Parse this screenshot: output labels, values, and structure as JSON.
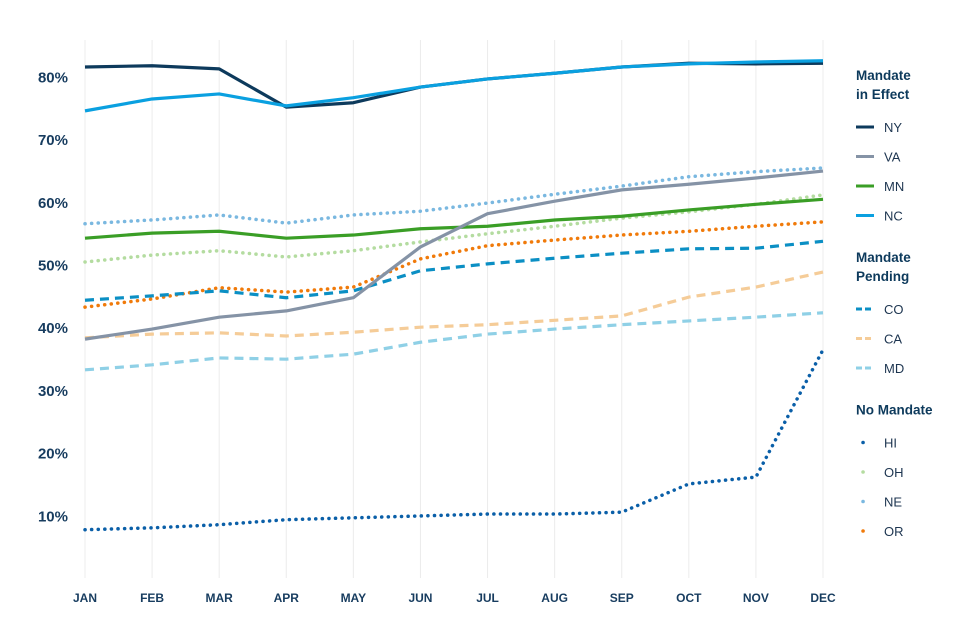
{
  "chart_data": {
    "type": "line",
    "title": "",
    "xlabel": "",
    "ylabel": "",
    "categories": [
      "JAN",
      "FEB",
      "MAR",
      "APR",
      "MAY",
      "JUN",
      "JUL",
      "AUG",
      "SEP",
      "OCT",
      "NOV",
      "DEC"
    ],
    "ylim": [
      0,
      90
    ],
    "yticks": [
      10,
      20,
      30,
      40,
      50,
      60,
      70,
      80
    ],
    "ytick_labels": [
      "10%",
      "20%",
      "30%",
      "40%",
      "50%",
      "60%",
      "70%",
      "80%"
    ],
    "grid": "vertical",
    "legend_position": "right",
    "legend_groups": [
      {
        "title_lines": [
          "Mandate",
          "in Effect"
        ],
        "series": [
          "NY",
          "VA",
          "MN",
          "NC"
        ]
      },
      {
        "title_lines": [
          "Mandate",
          "Pending"
        ],
        "series": [
          "CO",
          "CA",
          "MD"
        ]
      },
      {
        "title_lines": [
          "No Mandate"
        ],
        "series": [
          "HI",
          "OH",
          "NE",
          "OR"
        ]
      }
    ],
    "series": [
      {
        "name": "NY",
        "style": "solid",
        "color": "#0d3a5c",
        "values": [
          81.5,
          81.7,
          81.2,
          75.1,
          75.8,
          78.3,
          79.6,
          80.5,
          81.5,
          82.1,
          82.0,
          82.1
        ]
      },
      {
        "name": "VA",
        "style": "solid",
        "color": "#8593a6",
        "values": [
          38.1,
          39.7,
          41.6,
          42.6,
          44.7,
          52.8,
          58.1,
          60.1,
          61.9,
          62.8,
          63.8,
          64.9
        ]
      },
      {
        "name": "MN",
        "style": "solid",
        "color": "#3a9e26",
        "values": [
          54.2,
          55.0,
          55.3,
          54.2,
          54.7,
          55.7,
          56.1,
          57.1,
          57.7,
          58.7,
          59.6,
          60.4
        ]
      },
      {
        "name": "NC",
        "style": "solid",
        "color": "#0aa0e0",
        "values": [
          74.5,
          76.4,
          77.2,
          75.3,
          76.6,
          78.3,
          79.6,
          80.5,
          81.5,
          82.0,
          82.3,
          82.5
        ]
      },
      {
        "name": "CO",
        "style": "dashed",
        "color": "#0b8fc4",
        "values": [
          44.3,
          45.0,
          45.8,
          44.7,
          45.8,
          49.0,
          50.1,
          51.0,
          51.8,
          52.5,
          52.6,
          53.7
        ]
      },
      {
        "name": "CA",
        "style": "dashed",
        "color": "#f5cc98",
        "values": [
          38.3,
          38.9,
          39.1,
          38.6,
          39.2,
          40.0,
          40.4,
          41.1,
          41.8,
          44.8,
          46.4,
          48.8
        ]
      },
      {
        "name": "MD",
        "style": "dashed",
        "color": "#8fd0e6",
        "values": [
          33.2,
          34.0,
          35.1,
          34.9,
          35.7,
          37.6,
          38.9,
          39.7,
          40.4,
          41.0,
          41.6,
          42.3
        ]
      },
      {
        "name": "HI",
        "style": "dotted",
        "color": "#0a5fa8",
        "values": [
          7.7,
          8.0,
          8.5,
          9.3,
          9.6,
          9.9,
          10.2,
          10.2,
          10.5,
          15.0,
          16.1,
          36.4
        ]
      },
      {
        "name": "OH",
        "style": "dotted",
        "color": "#b4dca0",
        "values": [
          50.4,
          51.5,
          52.2,
          51.2,
          52.2,
          53.6,
          54.9,
          56.1,
          57.4,
          58.4,
          59.6,
          61.1
        ]
      },
      {
        "name": "NE",
        "style": "dotted",
        "color": "#7ab8e0",
        "values": [
          56.5,
          57.1,
          57.9,
          56.6,
          57.9,
          58.5,
          59.8,
          61.2,
          62.5,
          64.0,
          64.8,
          65.4
        ]
      },
      {
        "name": "OR",
        "style": "dotted",
        "color": "#f07a0a",
        "values": [
          43.2,
          44.5,
          46.3,
          45.6,
          46.4,
          50.9,
          53.0,
          53.9,
          54.7,
          55.3,
          56.1,
          56.8
        ]
      }
    ]
  }
}
